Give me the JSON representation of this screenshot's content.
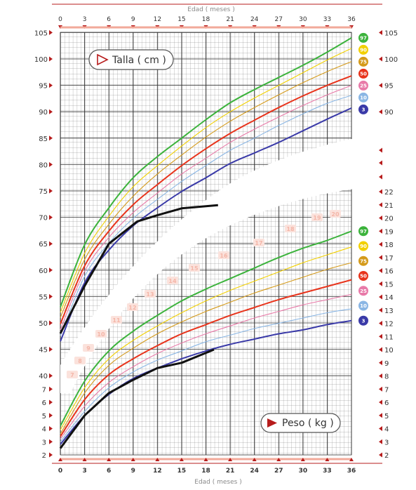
{
  "chart_data": [
    {
      "type": "line",
      "title": "Talla ( cm )",
      "xlabel": "Edad ( meses )",
      "ylabel": "",
      "x_ticks": [
        0,
        3,
        6,
        9,
        12,
        15,
        18,
        21,
        24,
        27,
        30,
        33,
        36
      ],
      "xlim": [
        0,
        36
      ],
      "y_ticks": [
        40,
        45,
        50,
        55,
        60,
        65,
        70,
        75,
        80,
        85,
        90,
        95,
        100,
        105
      ],
      "ylim": [
        40,
        105
      ],
      "grid": true,
      "x": [
        0,
        3,
        6,
        9,
        12,
        15,
        18,
        21,
        24,
        27,
        30,
        33,
        36
      ],
      "series": [
        {
          "name": "97",
          "color": "#3cb33c",
          "values": [
            53,
            64.8,
            71.8,
            77.5,
            81.5,
            85,
            88.5,
            91.7,
            94.2,
            96.5,
            98.8,
            101.3,
            104
          ]
        },
        {
          "name": "90",
          "color": "#f2d000",
          "values": [
            52,
            63.2,
            70.2,
            75.8,
            79.8,
            83.5,
            87,
            90,
            92.6,
            95,
            97.4,
            99.8,
            102
          ]
        },
        {
          "name": "75",
          "color": "#d49a1a",
          "values": [
            51,
            62,
            68.7,
            74,
            78.2,
            81.8,
            85.2,
            88.2,
            90.8,
            93.2,
            95.5,
            97.6,
            99.5
          ]
        },
        {
          "name": "50",
          "color": "#e8341c",
          "values": [
            49.8,
            60.8,
            67.4,
            72.4,
            76.2,
            79.8,
            83,
            85.9,
            88.4,
            90.8,
            93,
            95,
            96.8
          ]
        },
        {
          "name": "25",
          "color": "#e87aa8",
          "values": [
            48.7,
            59.8,
            66.2,
            70.9,
            74.6,
            78.2,
            81.2,
            84.2,
            86.7,
            89,
            91.2,
            93.2,
            95
          ]
        },
        {
          "name": "10",
          "color": "#8ab6e4",
          "values": [
            47.6,
            58.8,
            65.1,
            69.8,
            73.4,
            76.8,
            79.8,
            82.7,
            85,
            87.4,
            89.6,
            91.6,
            93.1
          ]
        },
        {
          "name": "3",
          "color": "#3a3aa8",
          "values": [
            46.5,
            57.6,
            63.8,
            68.4,
            71.8,
            74.9,
            77.5,
            80.2,
            82.2,
            84.2,
            86.4,
            88.6,
            90.7
          ]
        }
      ],
      "child": {
        "x": [
          0,
          3,
          6,
          9.5,
          12,
          15,
          19.5
        ],
        "values": [
          48,
          57,
          65,
          69.2,
          70.4,
          71.7,
          72.3
        ]
      }
    },
    {
      "type": "line",
      "title": "Peso ( kg )",
      "xlabel": "Edad ( meses )",
      "ylabel": "",
      "x_ticks": [
        0,
        3,
        6,
        9,
        12,
        15,
        18,
        21,
        24,
        27,
        30,
        33,
        36
      ],
      "xlim": [
        0,
        36
      ],
      "y_ticks_left": [
        2,
        3,
        4,
        5,
        6,
        7
      ],
      "y_ticks_right": [
        2,
        3,
        4,
        5,
        6,
        7,
        8,
        9,
        10,
        11,
        12,
        13,
        14,
        15,
        16,
        17,
        18,
        19,
        20,
        21,
        22
      ],
      "ylim": [
        2,
        22
      ],
      "grid": true,
      "x": [
        0,
        3,
        6,
        9,
        12,
        15,
        18,
        21,
        24,
        27,
        30,
        33,
        36
      ],
      "series": [
        {
          "name": "97",
          "color": "#3cb33c",
          "values": [
            4.2,
            7.6,
            9.9,
            11.4,
            12.6,
            13.7,
            14.6,
            15.4,
            16.2,
            17,
            17.7,
            18.3,
            19
          ]
        },
        {
          "name": "90",
          "color": "#f2d000",
          "values": [
            3.9,
            7.1,
            9.3,
            10.7,
            11.8,
            12.8,
            13.7,
            14.5,
            15.2,
            15.9,
            16.6,
            17.2,
            17.8
          ]
        },
        {
          "name": "75",
          "color": "#d49a1a",
          "values": [
            3.6,
            6.7,
            8.8,
            10.1,
            11.2,
            12.1,
            12.9,
            13.6,
            14.3,
            14.9,
            15.5,
            16.1,
            16.6
          ]
        },
        {
          "name": "50",
          "color": "#e8341c",
          "values": [
            3.4,
            6.2,
            8.1,
            9.3,
            10.3,
            11.2,
            11.9,
            12.6,
            13.2,
            13.8,
            14.3,
            14.8,
            15.3
          ]
        },
        {
          "name": "25",
          "color": "#e87aa8",
          "values": [
            3.2,
            5.7,
            7.5,
            8.7,
            9.7,
            10.5,
            11.2,
            11.8,
            12.4,
            12.9,
            13.4,
            13.8,
            14.2
          ]
        },
        {
          "name": "10",
          "color": "#8ab6e4",
          "values": [
            3,
            5.3,
            7.1,
            8.3,
            9.2,
            9.9,
            10.6,
            11.1,
            11.6,
            12,
            12.4,
            12.8,
            13.1
          ]
        },
        {
          "name": "3",
          "color": "#3a3aa8",
          "values": [
            2.8,
            5,
            6.6,
            7.8,
            8.6,
            9.3,
            9.9,
            10.4,
            10.8,
            11.2,
            11.5,
            11.9,
            12.2
          ]
        }
      ],
      "child": {
        "x": [
          0,
          3,
          6,
          9,
          12,
          15,
          19
        ],
        "values": [
          2.5,
          5,
          6.7,
          7.7,
          8.6,
          9,
          10
        ]
      }
    }
  ],
  "weight_band_labels": [
    "7",
    "8",
    "9",
    "10",
    "11",
    "12",
    "13",
    "14",
    "15",
    "16",
    "17",
    "18",
    "19",
    "20"
  ],
  "axis_extra_markers": [
    "",
    "",
    ""
  ]
}
